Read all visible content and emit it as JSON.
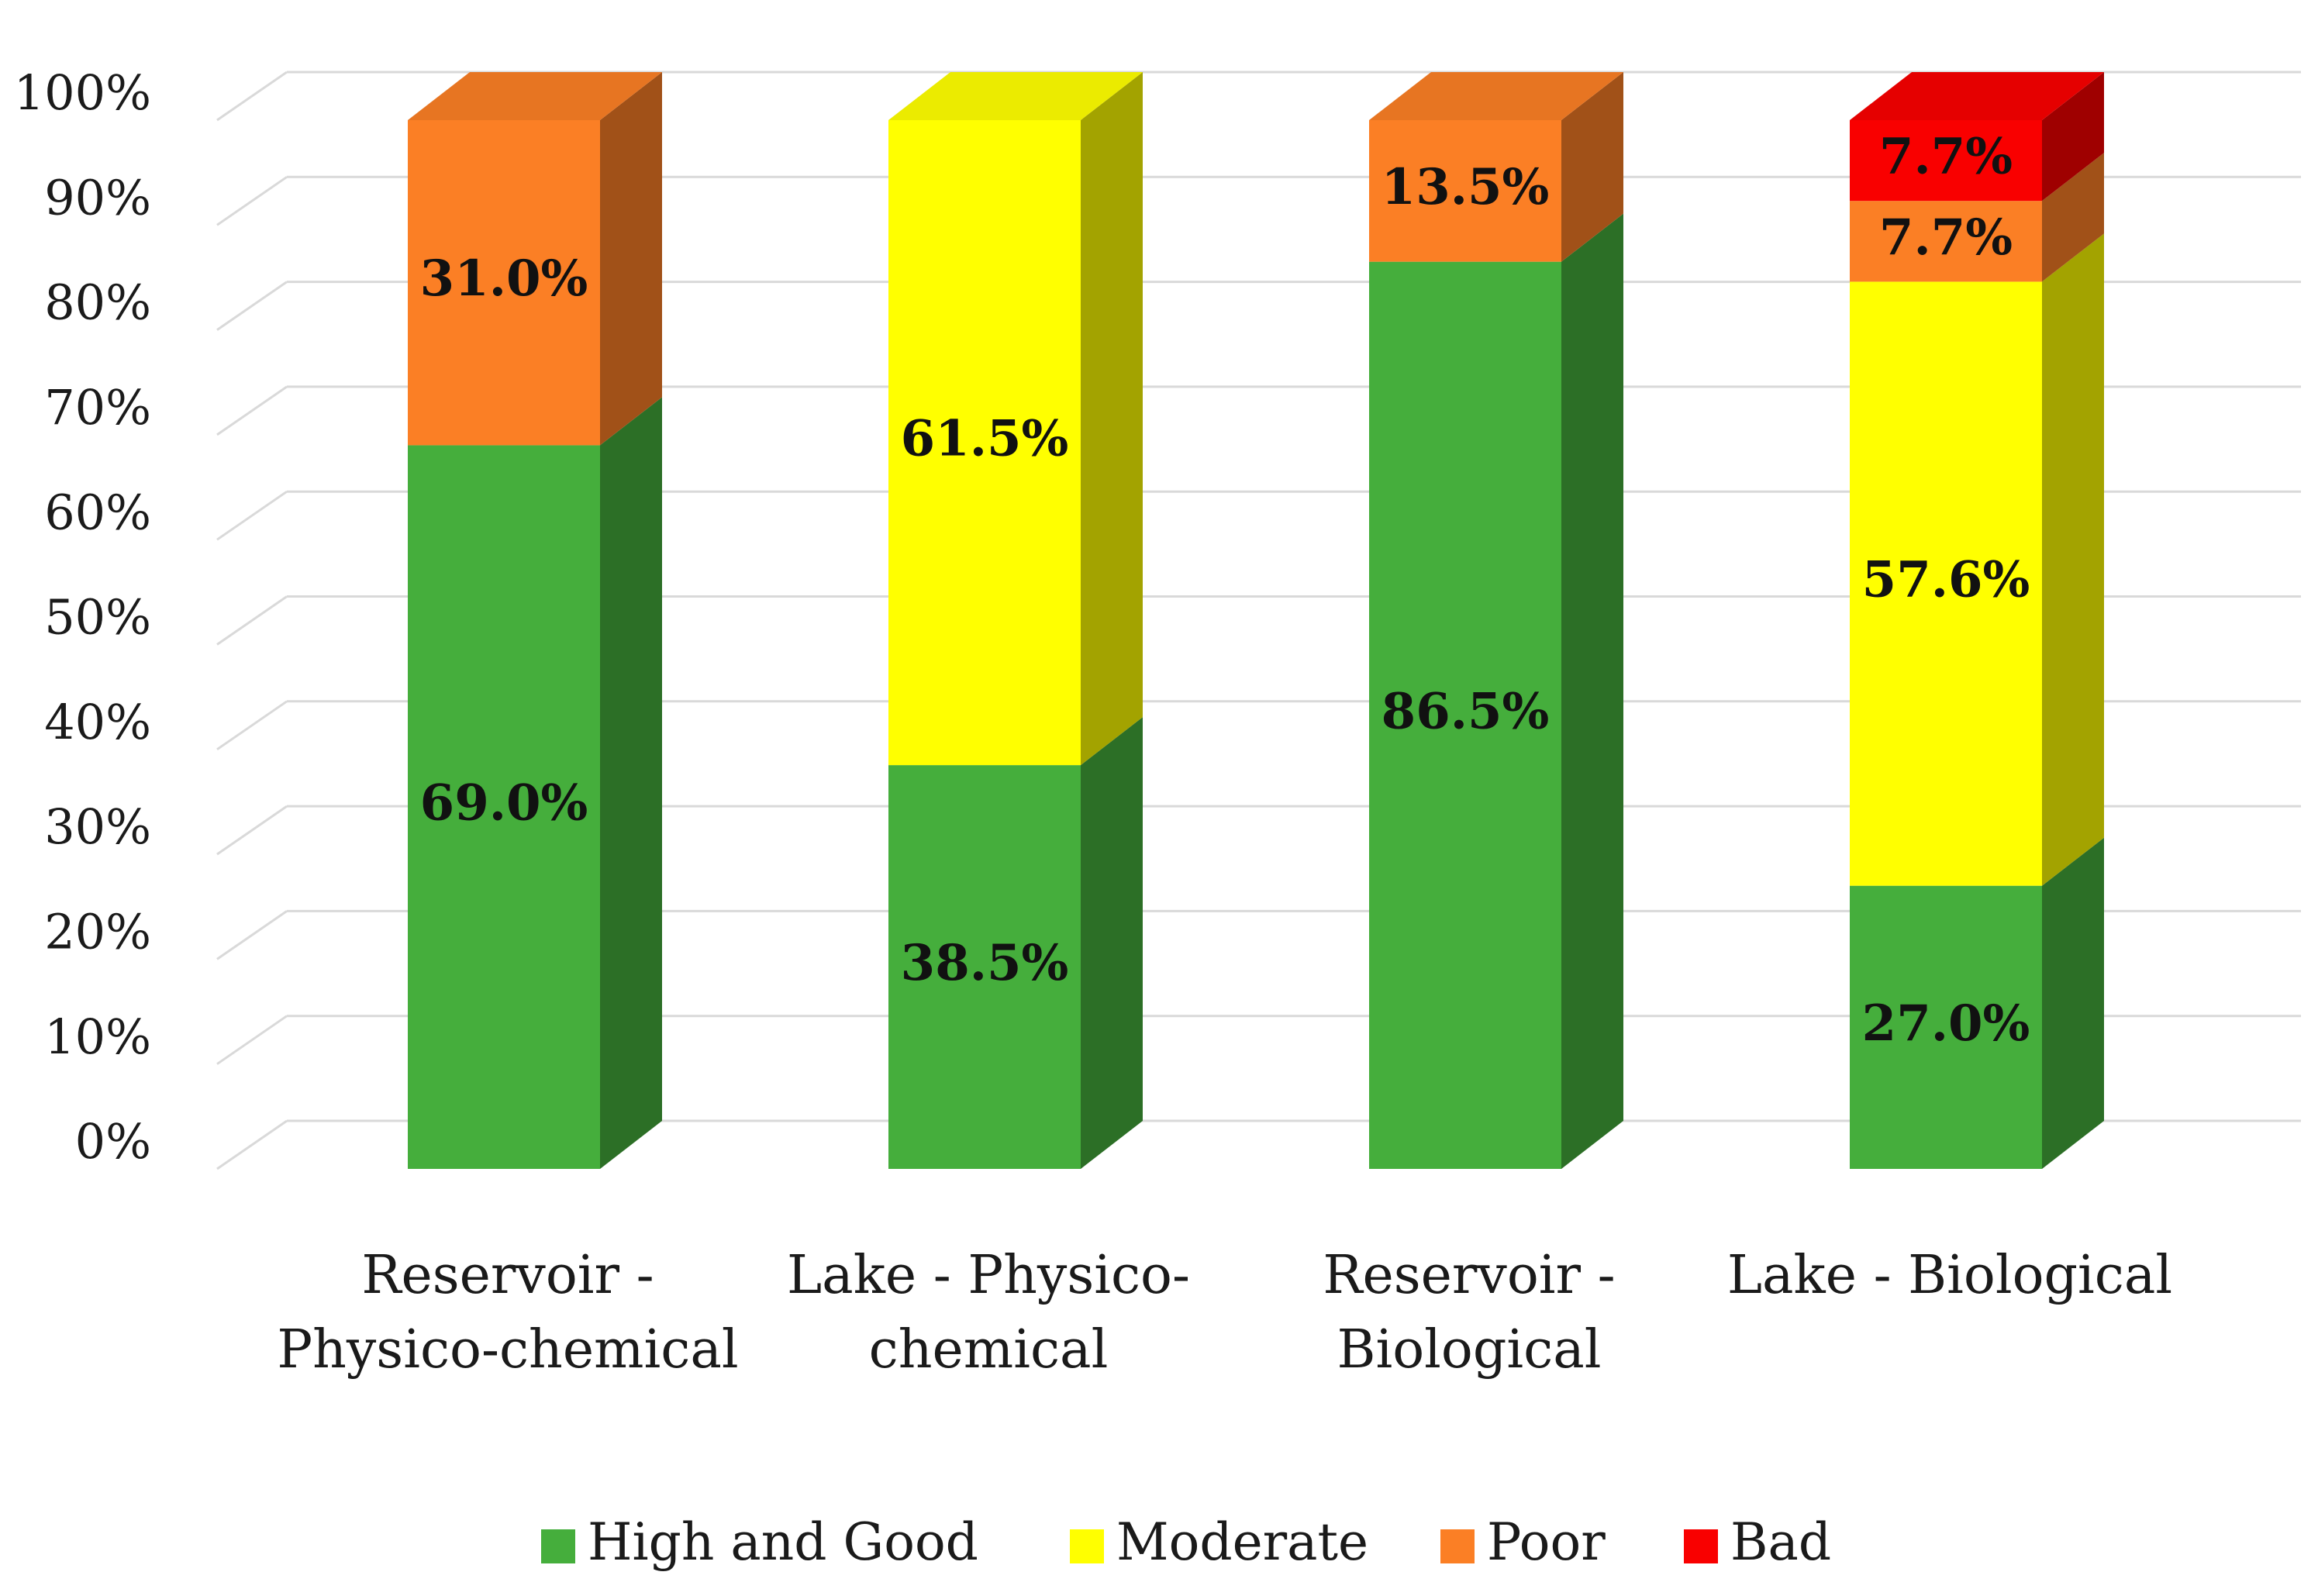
{
  "chart_data": {
    "type": "bar",
    "stacked": true,
    "title": "",
    "xlabel": "",
    "ylabel": "",
    "ylim": [
      0,
      100
    ],
    "y_ticks": [
      "0%",
      "10%",
      "20%",
      "30%",
      "40%",
      "50%",
      "60%",
      "70%",
      "80%",
      "90%",
      "100%"
    ],
    "categories": [
      [
        "Reservoir -",
        "Physico-chemical"
      ],
      [
        "Lake - Physico-",
        "chemical"
      ],
      [
        "Reservoir -",
        "Biological"
      ],
      [
        "Lake - Biological"
      ]
    ],
    "series": [
      {
        "name": "High and Good",
        "color": "#45ae3c",
        "values": [
          69.0,
          38.5,
          86.5,
          27.0
        ],
        "labels": [
          "69.0%",
          "38.5%",
          "86.5%",
          "27.0%"
        ]
      },
      {
        "name": "Moderate",
        "color": "#ffff00",
        "values": [
          0,
          61.5,
          0,
          57.6
        ],
        "labels": [
          "",
          "61.5%",
          "",
          "57.6%"
        ]
      },
      {
        "name": "Poor",
        "color": "#fb7f25",
        "values": [
          31.0,
          0,
          13.5,
          7.7
        ],
        "labels": [
          "31.0%",
          "",
          "13.5%",
          "7.7%"
        ]
      },
      {
        "name": "Bad",
        "color": "#f90000",
        "values": [
          0,
          0,
          0,
          7.7
        ],
        "labels": [
          "",
          "",
          "",
          "7.7%"
        ]
      }
    ],
    "legend": {
      "position": "bottom"
    },
    "grid": true
  }
}
